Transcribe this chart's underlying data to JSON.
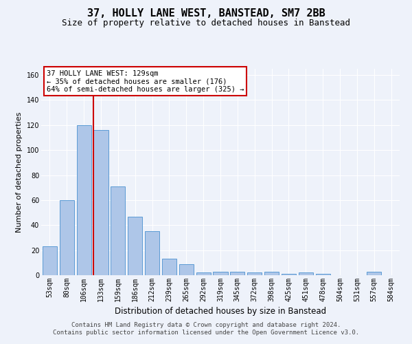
{
  "title": "37, HOLLY LANE WEST, BANSTEAD, SM7 2BB",
  "subtitle": "Size of property relative to detached houses in Banstead",
  "xlabel": "Distribution of detached houses by size in Banstead",
  "ylabel": "Number of detached properties",
  "bar_labels": [
    "53sqm",
    "80sqm",
    "106sqm",
    "133sqm",
    "159sqm",
    "186sqm",
    "212sqm",
    "239sqm",
    "265sqm",
    "292sqm",
    "319sqm",
    "345sqm",
    "372sqm",
    "398sqm",
    "425sqm",
    "451sqm",
    "478sqm",
    "504sqm",
    "531sqm",
    "557sqm",
    "584sqm"
  ],
  "bar_values": [
    23,
    60,
    120,
    116,
    71,
    47,
    35,
    13,
    9,
    2,
    3,
    3,
    2,
    3,
    1,
    2,
    1,
    0,
    0,
    3,
    0
  ],
  "bar_color": "#aec6e8",
  "bar_edge_color": "#5b9bd5",
  "ylim": [
    0,
    165
  ],
  "yticks": [
    0,
    20,
    40,
    60,
    80,
    100,
    120,
    140,
    160
  ],
  "vline_bin_index": 3,
  "annotation_title": "37 HOLLY LANE WEST: 129sqm",
  "annotation_line1": "← 35% of detached houses are smaller (176)",
  "annotation_line2": "64% of semi-detached houses are larger (325) →",
  "annotation_box_color": "#ffffff",
  "annotation_box_edge": "#cc0000",
  "footer1": "Contains HM Land Registry data © Crown copyright and database right 2024.",
  "footer2": "Contains public sector information licensed under the Open Government Licence v3.0.",
  "bg_color": "#eef2fa",
  "grid_color": "#ffffff",
  "vline_color": "#cc0000",
  "title_fontsize": 11,
  "subtitle_fontsize": 9,
  "ylabel_fontsize": 8,
  "xlabel_fontsize": 8.5,
  "tick_fontsize": 7,
  "ann_fontsize": 7.5,
  "footer_fontsize": 6.5
}
